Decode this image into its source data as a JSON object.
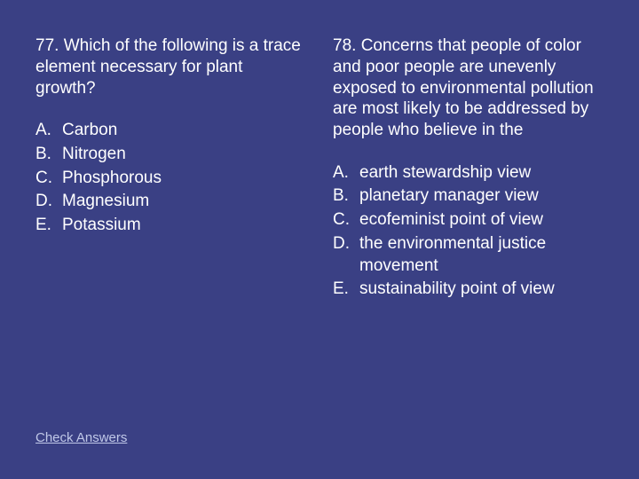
{
  "background_color": "#3a4084",
  "text_color": "#ffffff",
  "link_color": "#c0c8e8",
  "font_family": "Arial, sans-serif",
  "question_fontsize": 19,
  "link_fontsize": 15,
  "left": {
    "question": "77. Which of the following is a trace element necessary for plant growth?",
    "choices": [
      {
        "letter": "A.",
        "text": "Carbon"
      },
      {
        "letter": "B.",
        "text": "Nitrogen"
      },
      {
        "letter": "C.",
        "text": "Phosphorous"
      },
      {
        "letter": "D.",
        "text": "Magnesium"
      },
      {
        "letter": "E.",
        "text": "Potassium"
      }
    ]
  },
  "right": {
    "question": "78. Concerns that people of color and poor people are unevenly exposed to environmental pollution are most likely to be addressed by people who believe in the",
    "choices": [
      {
        "letter": "A.",
        "text": "earth stewardship view"
      },
      {
        "letter": "B.",
        "text": "planetary manager view"
      },
      {
        "letter": "C.",
        "text": "ecofeminist point of view"
      },
      {
        "letter": "D.",
        "text": "the environmental justice movement"
      },
      {
        "letter": "E.",
        "text": "sustainability point of view"
      }
    ]
  },
  "check_link": "Check Answers"
}
